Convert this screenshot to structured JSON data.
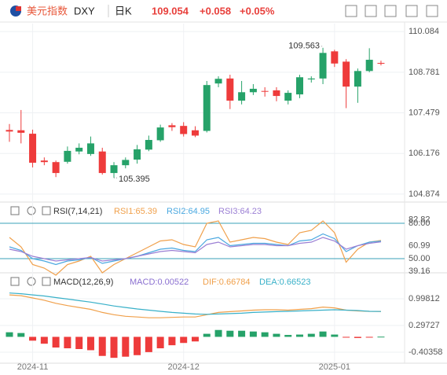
{
  "header": {
    "name": "美元指数",
    "symbol": "DXY",
    "interval": "日K",
    "price": "109.054",
    "change": "+0.058",
    "change_pct": "+0.05%"
  },
  "chart_data": [
    {
      "type": "candlestick",
      "categories": [
        null,
        null,
        "2024-11",
        null,
        null,
        null,
        null,
        null,
        null,
        null,
        null,
        null,
        null,
        null,
        null,
        "2024-12",
        null,
        null,
        null,
        null,
        null,
        null,
        null,
        null,
        null,
        null,
        null,
        null,
        "2025-01",
        null,
        null,
        null,
        null
      ],
      "open": [
        106.93,
        106.92,
        106.81,
        105.95,
        105.9,
        105.91,
        106.24,
        106.16,
        106.24,
        105.55,
        105.8,
        105.98,
        106.3,
        106.6,
        107.08,
        107.06,
        106.92,
        106.9,
        108.42,
        108.58,
        107.87,
        108.14,
        108.18,
        108.2,
        107.87,
        108.07,
        108.55,
        108.58,
        109.45,
        109.12,
        108.32,
        108.82,
        109.08
      ],
      "high": [
        107.12,
        107.57,
        106.94,
        106.05,
        105.95,
        106.4,
        106.5,
        106.72,
        106.36,
        105.9,
        106.05,
        106.45,
        106.75,
        107.1,
        107.15,
        107.18,
        107.05,
        108.5,
        108.65,
        108.7,
        108.5,
        108.4,
        108.3,
        108.3,
        108.2,
        108.7,
        108.65,
        109.563,
        109.5,
        109.2,
        108.9,
        109.55,
        109.15
      ],
      "low": [
        106.55,
        106.5,
        105.73,
        105.8,
        105.42,
        105.85,
        106.15,
        106.1,
        105.5,
        105.395,
        105.7,
        105.85,
        106.25,
        106.55,
        106.9,
        106.72,
        106.7,
        106.85,
        108.3,
        107.6,
        107.75,
        108.05,
        108.0,
        107.85,
        107.75,
        107.95,
        108.45,
        108.4,
        108.95,
        107.63,
        107.8,
        108.78,
        109.0
      ],
      "close": [
        106.88,
        106.84,
        105.88,
        105.9,
        105.55,
        106.26,
        106.36,
        106.5,
        105.55,
        105.8,
        105.97,
        106.31,
        106.61,
        107.01,
        107.02,
        106.8,
        106.75,
        108.37,
        108.57,
        107.87,
        108.14,
        108.25,
        108.17,
        108.02,
        108.12,
        108.62,
        108.58,
        109.4,
        109.06,
        108.32,
        108.82,
        109.18,
        109.054
      ],
      "up_color": "#26a269",
      "down_color": "#ee3b3b",
      "ylim": [
        104.67,
        110.34
      ],
      "yticks": [
        110.084,
        108.781,
        107.479,
        106.176,
        104.874
      ],
      "annotations": [
        "109.563",
        "105.395"
      ]
    },
    {
      "type": "line",
      "title": "RSI(7,14,21)",
      "series": [
        {
          "name": "RSI1:65.39",
          "color": "#f0a04b",
          "values": [
            68,
            60,
            45,
            42,
            36,
            45,
            48,
            52,
            38,
            45,
            50,
            55,
            60,
            65,
            66,
            62,
            60,
            80,
            82,
            64,
            66,
            68,
            67,
            64,
            62,
            72,
            74,
            82,
            72,
            47,
            58,
            64,
            65.39
          ]
        },
        {
          "name": "RSI2:64.95",
          "color": "#4aa8e0",
          "values": [
            60,
            57,
            50,
            48,
            45,
            48,
            49,
            51,
            46,
            48,
            50,
            52,
            55,
            58,
            59,
            57,
            56,
            66,
            68,
            61,
            62,
            63,
            63,
            62,
            61,
            65,
            66,
            71,
            67,
            56,
            61,
            64,
            64.95
          ]
        },
        {
          "name": "RSI3:64.23",
          "color": "#9b7fd4",
          "values": [
            58,
            56,
            52,
            50,
            48,
            49,
            50,
            51,
            48,
            49,
            50,
            52,
            54,
            56,
            57,
            56,
            55,
            62,
            64,
            60,
            61,
            62,
            62,
            61,
            61,
            63,
            64,
            68,
            65,
            58,
            61,
            63,
            64.23
          ]
        }
      ],
      "ylim": [
        39.33,
        94.67
      ],
      "yticks": [
        {
          "value": 80,
          "label": "80.00",
          "line": true
        },
        82.82,
        60.99,
        {
          "value": 50,
          "label": "50.00",
          "line": true
        },
        39.16
      ]
    },
    {
      "type": "macd",
      "title": "MACD(12,26,9)",
      "series": [
        {
          "name": "MACD:0.00522",
          "kind": "bar",
          "up_color": "#26a269",
          "down_color": "#ee3b3b",
          "values": [
            0.12,
            0.1,
            -0.1,
            -0.18,
            -0.28,
            -0.3,
            -0.32,
            -0.35,
            -0.5,
            -0.55,
            -0.52,
            -0.48,
            -0.4,
            -0.3,
            -0.22,
            -0.16,
            -0.12,
            0.08,
            0.18,
            0.16,
            0.16,
            0.14,
            0.12,
            0.08,
            0.05,
            0.06,
            0.08,
            0.14,
            0.06,
            -0.02,
            -0.03,
            -0.01,
            0.00522
          ]
        },
        {
          "name": "DIF:0.66784",
          "color": "#f0a04b",
          "values": [
            1.1,
            1.08,
            1.02,
            0.96,
            0.88,
            0.82,
            0.77,
            0.72,
            0.64,
            0.58,
            0.54,
            0.52,
            0.5,
            0.5,
            0.51,
            0.52,
            0.52,
            0.58,
            0.64,
            0.66,
            0.68,
            0.7,
            0.71,
            0.71,
            0.7,
            0.72,
            0.74,
            0.78,
            0.76,
            0.7,
            0.68,
            0.67,
            0.66784
          ]
        },
        {
          "name": "DEA:0.66523",
          "color": "#38b0c8",
          "values": [
            1.15,
            1.13,
            1.1,
            1.07,
            1.03,
            0.99,
            0.95,
            0.91,
            0.86,
            0.81,
            0.77,
            0.73,
            0.7,
            0.67,
            0.64,
            0.62,
            0.6,
            0.59,
            0.6,
            0.61,
            0.62,
            0.64,
            0.65,
            0.66,
            0.67,
            0.68,
            0.69,
            0.7,
            0.71,
            0.7,
            0.69,
            0.67,
            0.66523
          ]
        }
      ],
      "ylim": [
        -0.691,
        1.617
      ],
      "yticks": [
        0.99812,
        0.29727,
        -0.40358
      ]
    }
  ]
}
